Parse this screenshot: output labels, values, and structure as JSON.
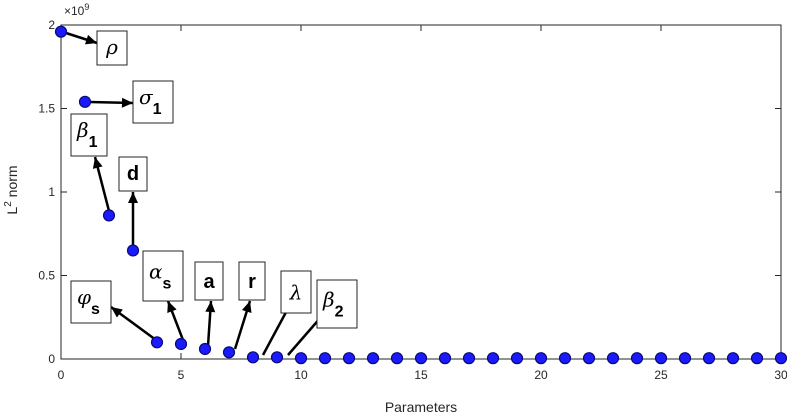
{
  "chart_data": {
    "type": "scatter",
    "xlabel": "Parameters",
    "ylabel": "L",
    "ylabel_sup": "2",
    "ylabel_rest": " norm",
    "y_multiplier": "×10",
    "y_multiplier_exp": "9",
    "xlim": [
      0,
      30
    ],
    "ylim": [
      0,
      2
    ],
    "x_ticks": [
      "0",
      "5",
      "10",
      "15",
      "20",
      "25",
      "30"
    ],
    "y_ticks": [
      "0",
      "0.5",
      "1",
      "1.5",
      "2"
    ],
    "y_tick_values": [
      0,
      0.5,
      1,
      1.5,
      2
    ],
    "x_tick_values": [
      0,
      5,
      10,
      15,
      20,
      25,
      30
    ],
    "marker_color": "#1a1aff",
    "marker_edge": "#0a0a70",
    "points": [
      {
        "x": 0,
        "y": 1.96
      },
      {
        "x": 1,
        "y": 1.54
      },
      {
        "x": 2,
        "y": 0.86
      },
      {
        "x": 3,
        "y": 0.65
      },
      {
        "x": 4,
        "y": 0.1
      },
      {
        "x": 5,
        "y": 0.09
      },
      {
        "x": 6,
        "y": 0.06
      },
      {
        "x": 7,
        "y": 0.04
      },
      {
        "x": 8,
        "y": 0.01
      },
      {
        "x": 9,
        "y": 0.01
      },
      {
        "x": 10,
        "y": 0.005
      },
      {
        "x": 11,
        "y": 0.005
      },
      {
        "x": 12,
        "y": 0.005
      },
      {
        "x": 13,
        "y": 0.005
      },
      {
        "x": 14,
        "y": 0.005
      },
      {
        "x": 15,
        "y": 0.005
      },
      {
        "x": 16,
        "y": 0.005
      },
      {
        "x": 17,
        "y": 0.005
      },
      {
        "x": 18,
        "y": 0.005
      },
      {
        "x": 19,
        "y": 0.005
      },
      {
        "x": 20,
        "y": 0.005
      },
      {
        "x": 21,
        "y": 0.005
      },
      {
        "x": 22,
        "y": 0.005
      },
      {
        "x": 23,
        "y": 0.005
      },
      {
        "x": 24,
        "y": 0.005
      },
      {
        "x": 25,
        "y": 0.005
      },
      {
        "x": 26,
        "y": 0.005
      },
      {
        "x": 27,
        "y": 0.005
      },
      {
        "x": 28,
        "y": 0.005
      },
      {
        "x": 29,
        "y": 0.005
      },
      {
        "x": 30,
        "y": 0.005
      }
    ],
    "annotations": [
      {
        "id": "rho",
        "symbol": "ρ",
        "sub": "",
        "bold": false,
        "point_index": 0
      },
      {
        "id": "sigma1",
        "symbol": "σ",
        "sub": "1",
        "bold": false,
        "point_index": 1
      },
      {
        "id": "beta1",
        "symbol": "β",
        "sub": "1",
        "bold": false,
        "point_index": 2
      },
      {
        "id": "d",
        "symbol": "d",
        "sub": "",
        "bold": true,
        "point_index": 3
      },
      {
        "id": "phis",
        "symbol": "φ",
        "sub": "s",
        "bold": false,
        "point_index": 4
      },
      {
        "id": "alphas",
        "symbol": "α",
        "sub": "s",
        "bold": false,
        "point_index": 5
      },
      {
        "id": "a",
        "symbol": "a",
        "sub": "",
        "bold": true,
        "point_index": 6
      },
      {
        "id": "r",
        "symbol": "r",
        "sub": "",
        "bold": true,
        "point_index": 7
      },
      {
        "id": "lambda",
        "symbol": "λ",
        "sub": "",
        "bold": false,
        "point_index": 9
      },
      {
        "id": "beta2",
        "symbol": "β",
        "sub": "2",
        "bold": false,
        "point_index": 10
      }
    ]
  }
}
